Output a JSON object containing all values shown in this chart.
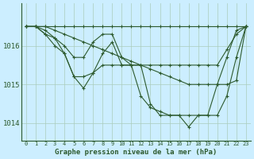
{
  "xlabel": "Graphe pression niveau de la mer (hPa)",
  "background_color": "#cceeff",
  "grid_color": "#aaccbb",
  "line_color": "#2d5a2d",
  "series": [
    [
      1016.5,
      1016.5,
      1016.5,
      1016.5,
      1016.5,
      1016.5,
      1016.5,
      1016.5,
      1016.5,
      1016.5,
      1016.5,
      1016.5,
      1016.5,
      1016.5,
      1016.5,
      1016.5,
      1016.5,
      1016.5,
      1016.5,
      1016.5,
      1016.5,
      1016.5,
      1016.5,
      1016.5
    ],
    [
      1016.5,
      1016.5,
      1016.5,
      1016.4,
      1016.3,
      1016.2,
      1016.1,
      1016.0,
      1015.9,
      1015.8,
      1015.7,
      1015.6,
      1015.5,
      1015.4,
      1015.3,
      1015.2,
      1015.1,
      1015.0,
      1015.0,
      1015.0,
      1015.0,
      1015.0,
      1015.1,
      1016.5
    ],
    [
      1016.5,
      1016.5,
      1016.3,
      1016.2,
      1016.0,
      1015.7,
      1015.7,
      1016.1,
      1016.3,
      1016.3,
      1015.7,
      1015.5,
      1015.5,
      1015.5,
      1015.5,
      1015.5,
      1015.5,
      1015.5,
      1015.5,
      1015.5,
      1015.5,
      1015.9,
      1016.3,
      1016.5
    ],
    [
      1016.5,
      1016.5,
      1016.4,
      1016.2,
      1015.8,
      1015.2,
      1014.9,
      1015.3,
      1015.8,
      1016.1,
      1015.5,
      1015.5,
      1014.7,
      1014.4,
      1014.3,
      1014.2,
      1014.2,
      1013.9,
      1014.2,
      1014.2,
      1015.0,
      1015.7,
      1016.4,
      1016.5
    ],
    [
      1016.5,
      1016.5,
      1016.3,
      1016.0,
      1015.8,
      1015.2,
      1015.2,
      1015.3,
      1015.5,
      1015.5,
      1015.5,
      1015.5,
      1015.5,
      1014.5,
      1014.2,
      1014.2,
      1014.2,
      1014.2,
      1014.2,
      1014.2,
      1014.2,
      1014.7,
      1015.7,
      1016.5
    ]
  ],
  "hours": [
    0,
    1,
    2,
    3,
    4,
    5,
    6,
    7,
    8,
    9,
    10,
    11,
    12,
    13,
    14,
    15,
    16,
    17,
    18,
    19,
    20,
    21,
    22,
    23
  ],
  "ylim_min": 1013.55,
  "ylim_max": 1017.1,
  "yticks": [
    1014.0,
    1015.0,
    1016.0
  ],
  "ytick_labels": [
    "1014",
    "1015",
    "1016"
  ],
  "xticks": [
    0,
    1,
    2,
    3,
    4,
    5,
    6,
    7,
    8,
    9,
    10,
    11,
    12,
    13,
    14,
    15,
    16,
    17,
    18,
    19,
    20,
    21,
    22,
    23
  ],
  "fontsize_xlabel": 6.5,
  "fontsize_ytick": 6.5,
  "fontsize_xtick": 5.0,
  "linewidth": 0.8,
  "markersize": 2.5
}
